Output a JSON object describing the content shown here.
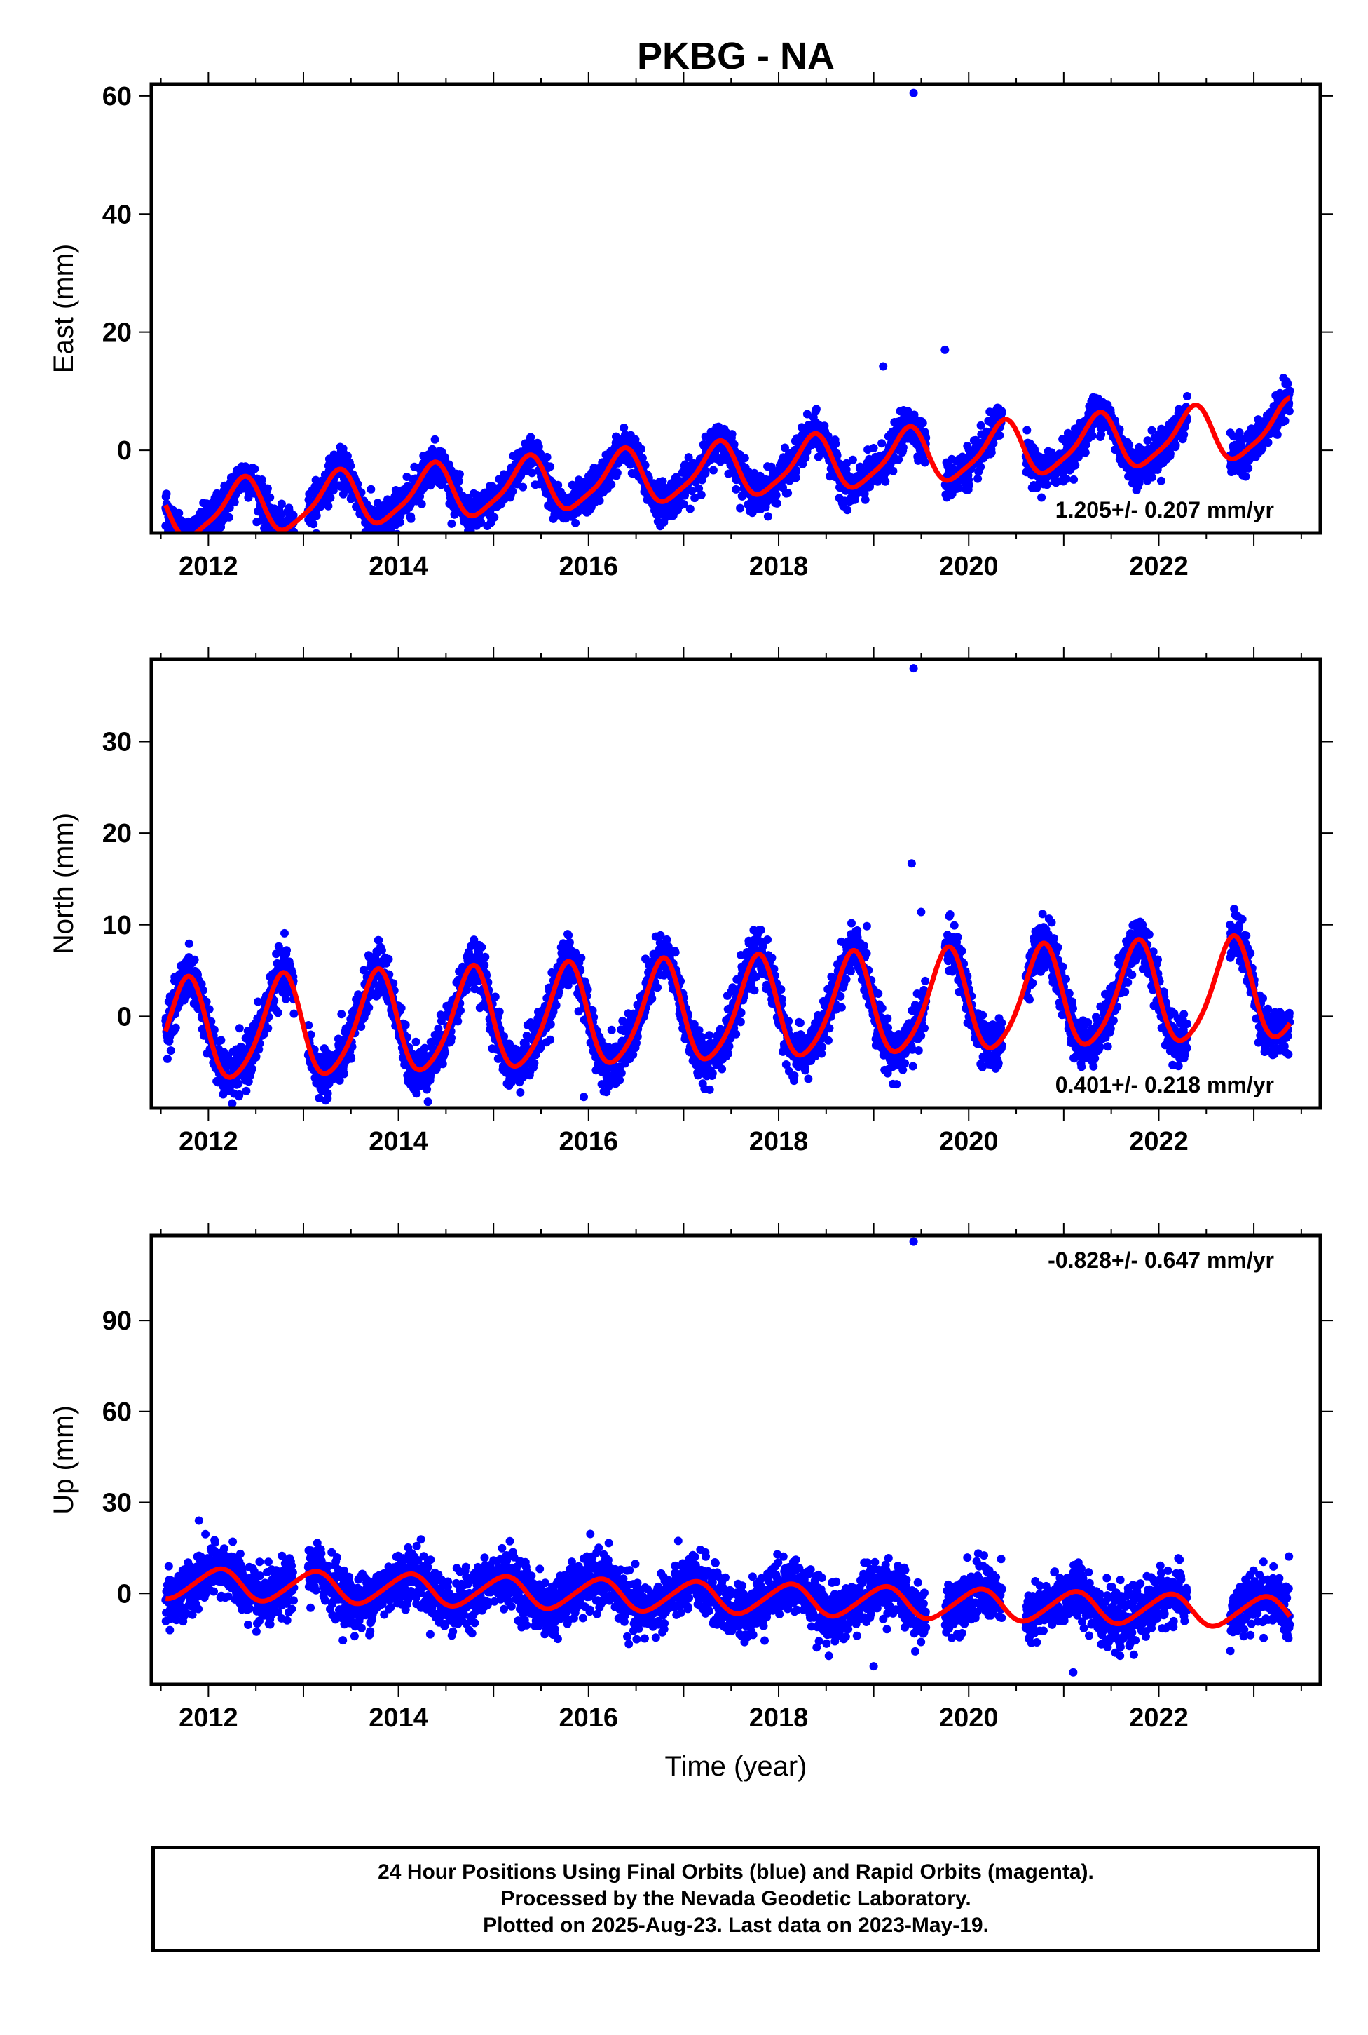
{
  "chart_data": {
    "title": "PKBG - NA",
    "xlabel": "Time (year)",
    "x_ticks": [
      "2012",
      "2014",
      "2016",
      "2018",
      "2020",
      "2022"
    ],
    "xlim": [
      2011.4,
      2023.7
    ],
    "colors": {
      "observations": "#0000ff",
      "model": "#ff0000"
    },
    "panels": [
      {
        "type": "scatter",
        "ylabel": "East (mm)",
        "ylim": [
          -14,
          62
        ],
        "y_ticks": [
          "0",
          "20",
          "40",
          "60"
        ],
        "rate_label": "1.205+/- 0.207 mm/yr",
        "rate_position": "bottom-right",
        "model": {
          "mean": -3.5,
          "trend": 1.205,
          "t0": 2017.5,
          "annual_amp": 4.5,
          "phase": 0.1,
          "semi_amp": 1.0,
          "semi_phase": 0.3
        },
        "noise": 1.6,
        "outliers": [
          [
            2019.42,
            60.5
          ],
          [
            2019.75,
            17.0
          ],
          [
            2011.55,
            -12.8
          ],
          [
            2019.1,
            14.2
          ]
        ]
      },
      {
        "type": "scatter",
        "ylabel": "North (mm)",
        "ylim": [
          -10,
          39
        ],
        "y_ticks": [
          "0",
          "10",
          "20",
          "30"
        ],
        "rate_label": "0.401+/- 0.218 mm/yr",
        "rate_position": "bottom-right",
        "model": {
          "mean": 0.5,
          "trend": 0.401,
          "t0": 2017.5,
          "annual_amp": 5.5,
          "phase": 0.52,
          "semi_amp": 0.8,
          "semi_phase": 0.2
        },
        "noise": 1.3,
        "outliers": [
          [
            2019.42,
            38.0
          ],
          [
            2019.4,
            16.7
          ],
          [
            2019.5,
            11.4
          ],
          [
            2015.95,
            -8.8
          ]
        ]
      },
      {
        "type": "scatter",
        "ylabel": "Up (mm)",
        "ylim": [
          -30,
          118
        ],
        "y_ticks": [
          "0",
          "30",
          "60",
          "90"
        ],
        "rate_label": "-0.828+/- 0.647 mm/yr",
        "rate_position": "top-right",
        "model": {
          "mean": -1.5,
          "trend": -0.828,
          "t0": 2017.5,
          "annual_amp": 5.0,
          "phase": 0.85,
          "semi_amp": 0.6,
          "semi_phase": 0.1
        },
        "noise": 4.5,
        "outliers": [
          [
            2019.42,
            116.0
          ],
          [
            2021.1,
            -26.0
          ],
          [
            2019.0,
            -24.0
          ],
          [
            2011.9,
            24.0
          ]
        ]
      }
    ],
    "data_span": [
      2011.55,
      2023.38
    ],
    "gaps": [
      [
        2012.9,
        2013.05
      ],
      [
        2019.55,
        2019.75
      ],
      [
        2020.35,
        2020.6
      ],
      [
        2022.3,
        2022.75
      ]
    ]
  },
  "footer": {
    "line1": "24 Hour Positions Using Final Orbits (blue) and Rapid Orbits (magenta).",
    "line2": "Processed by the Nevada Geodetic Laboratory.",
    "line3": "Plotted on 2025-Aug-23. Last data on 2023-May-19."
  }
}
